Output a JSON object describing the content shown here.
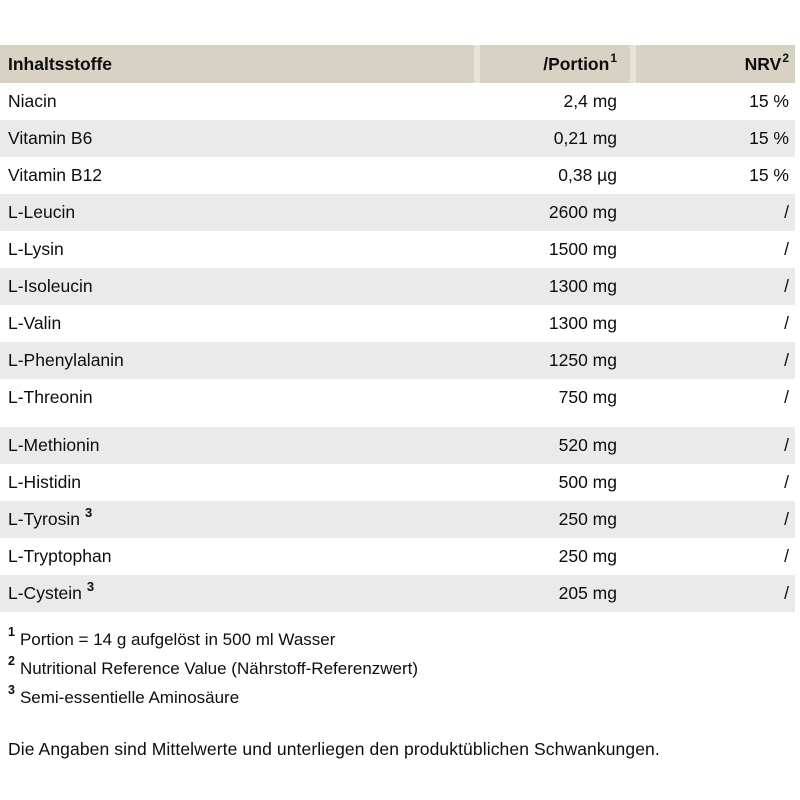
{
  "table": {
    "header": {
      "col1": "Inhaltsstoffe",
      "col2": "/Portion",
      "col2_sup": "1",
      "col3": "NRV",
      "col3_sup": "2"
    },
    "rows": [
      {
        "name": "Niacin",
        "sup": "",
        "amount": "2,4 mg",
        "nrv": "15 %",
        "gap_before": false
      },
      {
        "name": "Vitamin B6",
        "sup": "",
        "amount": "0,21 mg",
        "nrv": "15 %",
        "gap_before": false
      },
      {
        "name": "Vitamin B12",
        "sup": "",
        "amount": "0,38 µg",
        "nrv": "15 %",
        "gap_before": false
      },
      {
        "name": "L-Leucin",
        "sup": "",
        "amount": "2600 mg",
        "nrv": "/",
        "gap_before": false
      },
      {
        "name": "L-Lysin",
        "sup": "",
        "amount": "1500 mg",
        "nrv": "/",
        "gap_before": false
      },
      {
        "name": "L-Isoleucin",
        "sup": "",
        "amount": "1300 mg",
        "nrv": "/",
        "gap_before": false
      },
      {
        "name": "L-Valin",
        "sup": "",
        "amount": "1300 mg",
        "nrv": "/",
        "gap_before": false
      },
      {
        "name": "L-Phenylalanin",
        "sup": "",
        "amount": "1250 mg",
        "nrv": "/",
        "gap_before": false
      },
      {
        "name": "L-Threonin",
        "sup": "",
        "amount": "750 mg",
        "nrv": "/",
        "gap_before": false
      },
      {
        "name": "L-Methionin",
        "sup": "",
        "amount": "520 mg",
        "nrv": "/",
        "gap_before": true
      },
      {
        "name": "L-Histidin",
        "sup": "",
        "amount": "500 mg",
        "nrv": "/",
        "gap_before": false
      },
      {
        "name": "L-Tyrosin",
        "sup": "3",
        "amount": "250 mg",
        "nrv": "/",
        "gap_before": false
      },
      {
        "name": "L-Tryptophan",
        "sup": "",
        "amount": "250 mg",
        "nrv": "/",
        "gap_before": false
      },
      {
        "name": "L-Cystein",
        "sup": "3",
        "amount": "205 mg",
        "nrv": "/",
        "gap_before": false
      }
    ]
  },
  "footnotes": [
    {
      "marker": "1",
      "text": "Portion = 14 g aufgelöst in 500 ml Wasser"
    },
    {
      "marker": "2",
      "text": "Nutritional Reference Value (Nährstoff-Referenzwert)"
    },
    {
      "marker": "3",
      "text": "Semi-essentielle Aminosäure"
    }
  ],
  "disclaimer": "Die Angaben sind Mittelwerte und unterliegen den produktüblichen Schwankungen.",
  "colors": {
    "header_bg": "#d8d2c4",
    "row_shaded_bg": "#eaeaea",
    "divider": "#e7e3d8"
  }
}
